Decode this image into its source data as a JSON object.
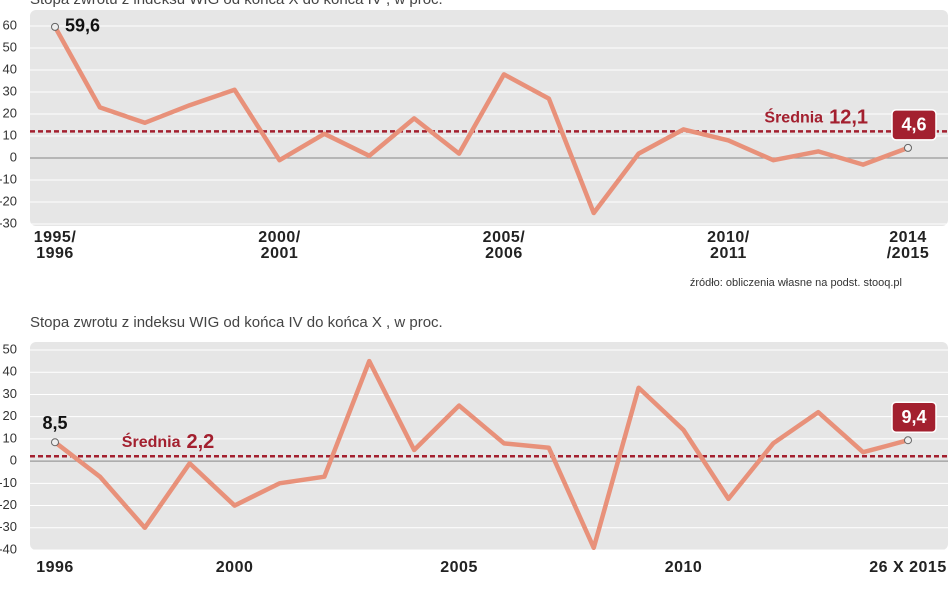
{
  "chart_data": [
    {
      "type": "line",
      "title": "Stopa zwrotu z indeksu WIG od końca X do końca IV , w proc.",
      "categories": [
        "1995/\n1996",
        null,
        null,
        null,
        null,
        "2000/\n2001",
        null,
        null,
        null,
        null,
        "2005/\n2006",
        null,
        null,
        null,
        null,
        "2010/\n2011",
        null,
        null,
        null,
        "2014\n/2015"
      ],
      "series": [
        {
          "name": null,
          "color": "#e8917a",
          "values": [
            59.6,
            23,
            16,
            24,
            31,
            -1,
            11,
            1,
            18,
            2,
            38,
            27,
            -25,
            2,
            13,
            8,
            -1,
            3,
            -3,
            4.6
          ],
          "value_labels": [
            "59,6",
            null,
            null,
            null,
            null,
            null,
            null,
            null,
            null,
            null,
            null,
            null,
            null,
            null,
            null,
            null,
            null,
            null,
            null,
            "4,6"
          ]
        }
      ],
      "mean": {
        "value": 12.1,
        "name": "Średnia",
        "label": "12,1",
        "color": "#a3202f"
      },
      "ylim": [
        -30,
        60
      ],
      "yticks": [
        -30,
        -20,
        -10,
        0,
        10,
        20,
        30,
        40,
        50,
        60
      ],
      "grid": true,
      "source": "źródło: obliczenia własne na podst. stooq.pl"
    },
    {
      "type": "line",
      "title": "Stopa zwrotu z indeksu WIG od końca IV do końca X , w proc.",
      "categories": [
        "1996",
        null,
        null,
        null,
        "2000",
        null,
        null,
        null,
        null,
        "2005",
        null,
        null,
        null,
        null,
        "2010",
        null,
        null,
        null,
        null,
        "26 X 2015"
      ],
      "series": [
        {
          "name": null,
          "color": "#e8917a",
          "values": [
            8.5,
            -7,
            -30,
            -1,
            -20,
            -10,
            -7,
            45,
            5,
            25,
            8,
            6,
            -39,
            33,
            14,
            -17,
            8,
            22,
            4,
            9.4
          ],
          "value_labels": [
            "8,5",
            null,
            null,
            null,
            null,
            null,
            null,
            null,
            null,
            null,
            null,
            null,
            null,
            null,
            null,
            null,
            null,
            null,
            null,
            "9,4"
          ]
        }
      ],
      "mean": {
        "value": 2.2,
        "name": "Średnia",
        "label": "2,2",
        "color": "#a3202f"
      },
      "ylim": [
        -40,
        50
      ],
      "yticks": [
        -40,
        -30,
        -20,
        -10,
        0,
        10,
        20,
        30,
        40,
        50
      ],
      "grid": true
    }
  ]
}
